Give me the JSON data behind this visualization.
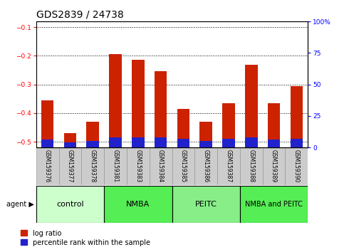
{
  "title": "GDS2839 / 24738",
  "samples": [
    "GSM159376",
    "GSM159377",
    "GSM159378",
    "GSM159381",
    "GSM159383",
    "GSM159384",
    "GSM159385",
    "GSM159386",
    "GSM159387",
    "GSM159388",
    "GSM159389",
    "GSM159390"
  ],
  "log_ratio": [
    -0.355,
    -0.47,
    -0.43,
    -0.193,
    -0.213,
    -0.255,
    -0.385,
    -0.43,
    -0.365,
    -0.232,
    -0.365,
    -0.305
  ],
  "percentile_rank": [
    6,
    4,
    5,
    8,
    8,
    8,
    7,
    5,
    7,
    8,
    6,
    7
  ],
  "ylim_left": [
    -0.52,
    -0.08
  ],
  "ylim_right": [
    0,
    100
  ],
  "yticks_left": [
    -0.5,
    -0.4,
    -0.3,
    -0.2,
    -0.1
  ],
  "yticks_right": [
    0,
    25,
    50,
    75,
    100
  ],
  "groups": [
    {
      "label": "control",
      "start": 0,
      "end": 3,
      "color": "#ccffcc"
    },
    {
      "label": "NMBA",
      "start": 3,
      "end": 6,
      "color": "#55ee55"
    },
    {
      "label": "PEITC",
      "start": 6,
      "end": 9,
      "color": "#88ee88"
    },
    {
      "label": "NMBA and PEITC",
      "start": 9,
      "end": 12,
      "color": "#55ee55"
    }
  ],
  "bar_color_red": "#cc2200",
  "bar_color_blue": "#2222cc",
  "bar_width": 0.55,
  "plot_bg_color": "#ffffff",
  "legend_items": [
    {
      "label": "log ratio",
      "color": "#cc2200"
    },
    {
      "label": "percentile rank within the sample",
      "color": "#2222cc"
    }
  ],
  "agent_label": "agent ▶",
  "title_fontsize": 10,
  "tick_fontsize": 6.5,
  "sample_fontsize": 5.5,
  "group_fontsize": 8,
  "legend_fontsize": 7,
  "sample_box_color": "#cccccc",
  "sample_box_edge": "#999999"
}
